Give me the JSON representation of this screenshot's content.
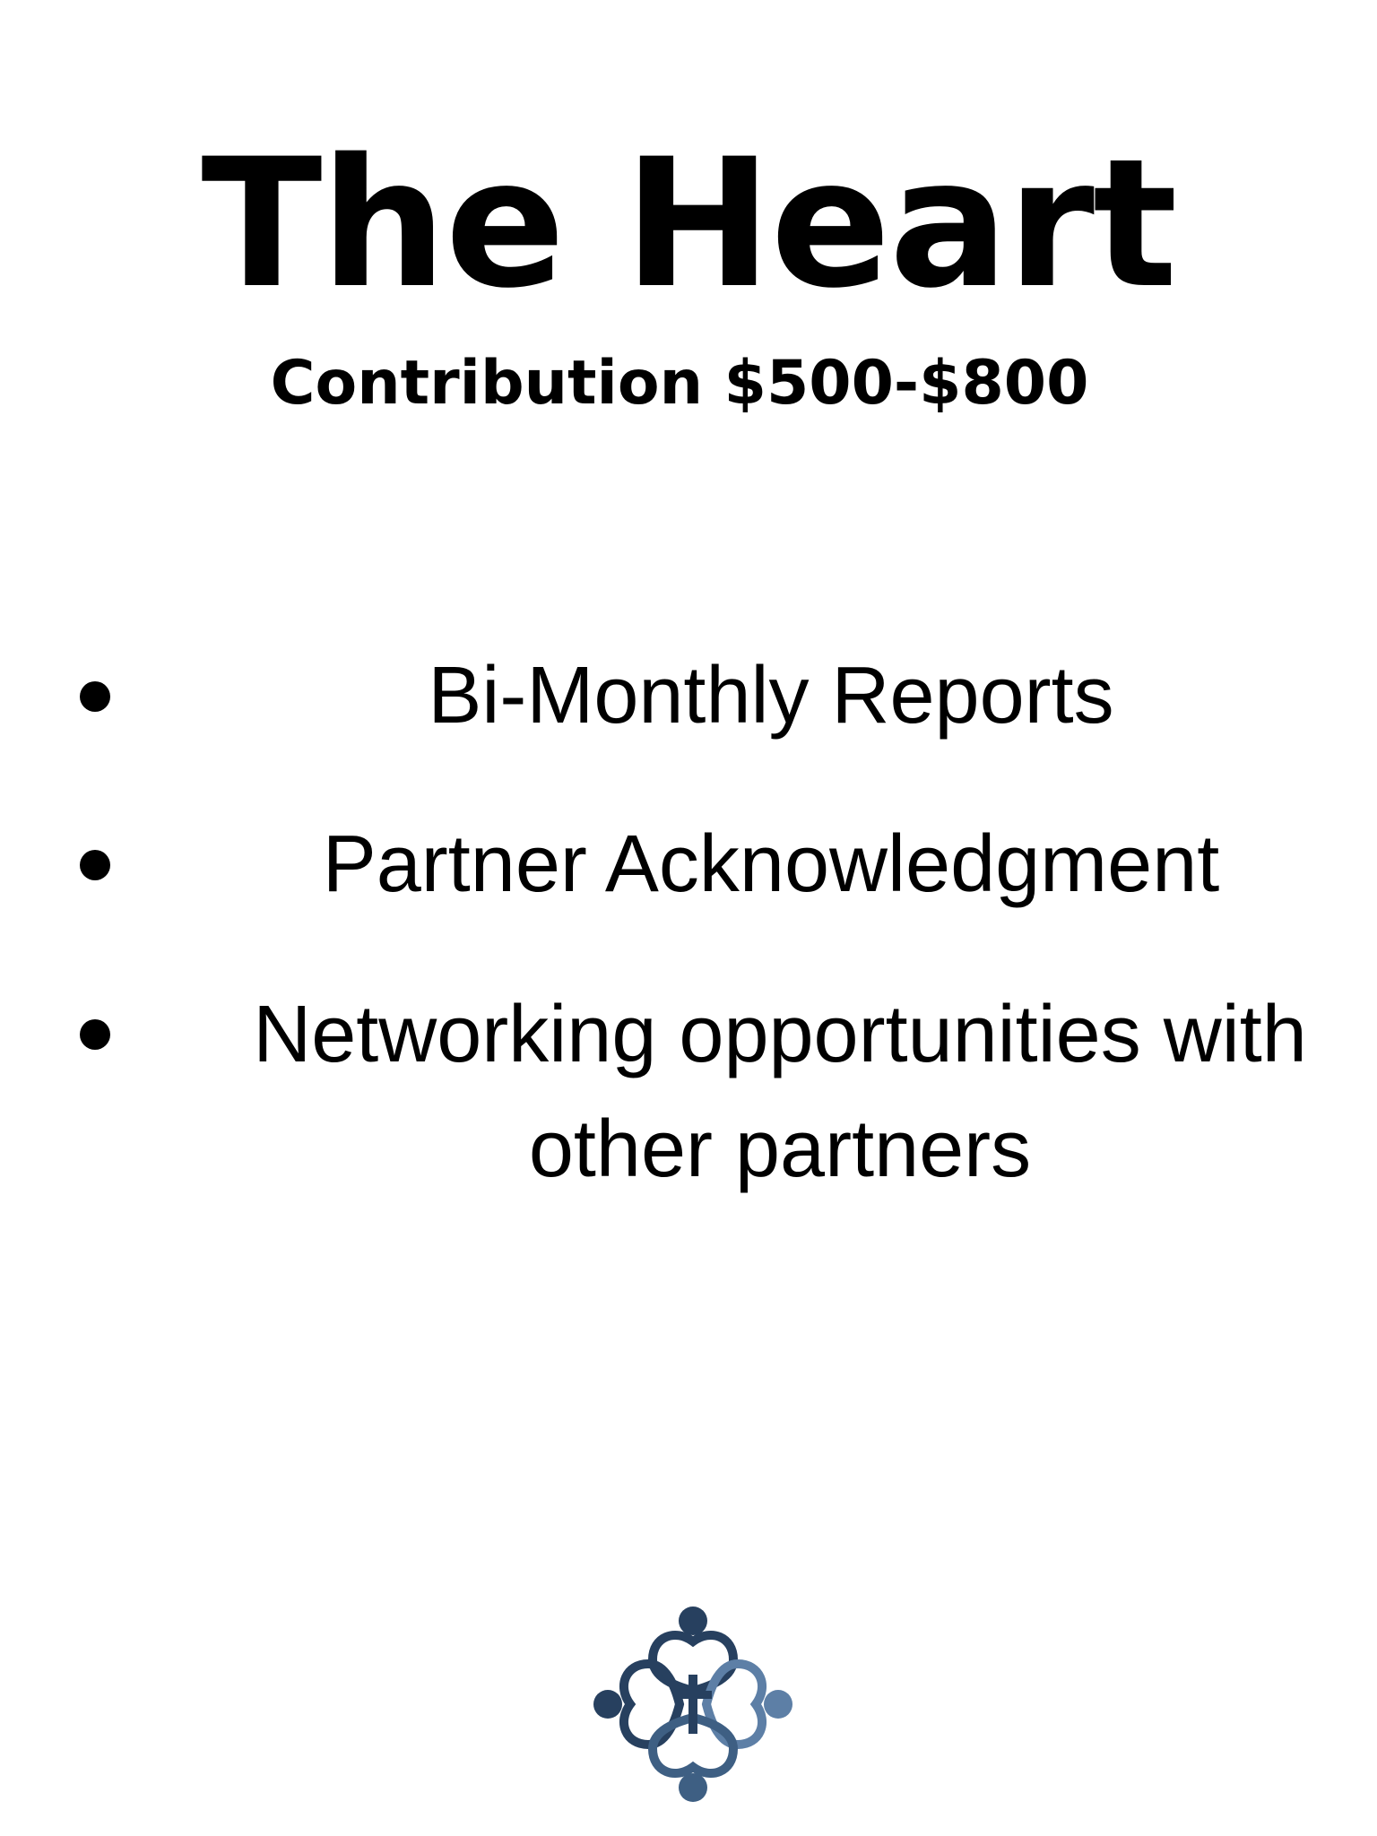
{
  "title": "The Heart",
  "subtitle": "Contribution $500-$800",
  "benefits": [
    {
      "label": "Bi-Monthly Reports"
    },
    {
      "label": "Partner Acknowledgment"
    },
    {
      "label": "Networking opportunities with other partners"
    }
  ],
  "logo": {
    "icon": "people-circle-cross-logo",
    "colors": [
      "#27405f",
      "#3e5f83",
      "#5d7fa6"
    ]
  }
}
